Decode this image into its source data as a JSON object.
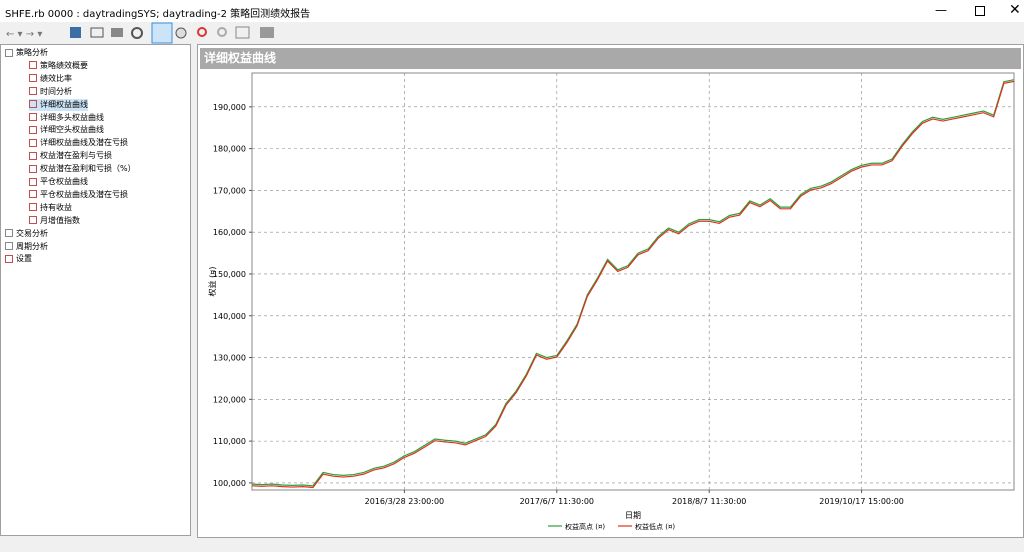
{
  "window": {
    "title": "SHFE.rb 0000 : daytradingSYS; daytrading-2 策略回测绩效报告"
  },
  "tree": {
    "items": [
      {
        "label": "策略分析",
        "children": [
          "策略绩效概要",
          "绩效比率",
          "时间分析",
          "详细权益曲线",
          "详细多头权益曲线",
          "详细空头权益曲线",
          "详细权益曲线及潜在亏损",
          "权益潜在盈利与亏损",
          "权益潜在盈利和亏损（%）",
          "平仓权益曲线",
          "平仓权益曲线及潜在亏损",
          "持有收益",
          "月增值指数"
        ]
      },
      {
        "label": "交易分析"
      },
      {
        "label": "周期分析"
      },
      {
        "label": "设置"
      }
    ]
  },
  "panel": {
    "title": "详细权益曲线"
  },
  "chart_data": {
    "type": "line",
    "xlabel": "日期",
    "ylabel": "权益 (¤)",
    "grid": true,
    "ylim": [
      98300,
      198100
    ],
    "yticks": [
      {
        "value": 100000,
        "label": "100,000"
      },
      {
        "value": 110000,
        "label": "110,000"
      },
      {
        "value": 120000,
        "label": "120,000"
      },
      {
        "value": 130000,
        "label": "130,000"
      },
      {
        "value": 140000,
        "label": "140,000"
      },
      {
        "value": 150000,
        "label": "150,000"
      },
      {
        "value": 160000,
        "label": "160,000"
      },
      {
        "value": 170000,
        "label": "170,000"
      },
      {
        "value": 180000,
        "label": "180,000"
      },
      {
        "value": 190000,
        "label": "190,000"
      }
    ],
    "categories": [
      null,
      null,
      null,
      null,
      null,
      null,
      null,
      null,
      null,
      null,
      null,
      null,
      null,
      null,
      null,
      "2016/3/28 23:00:00",
      null,
      null,
      null,
      null,
      null,
      null,
      null,
      null,
      null,
      null,
      null,
      null,
      null,
      null,
      "2017/6/7 11:30:00",
      null,
      null,
      null,
      null,
      null,
      null,
      null,
      null,
      null,
      null,
      null,
      null,
      null,
      null,
      "2018/8/7 11:30:00",
      null,
      null,
      null,
      null,
      null,
      null,
      null,
      null,
      null,
      null,
      null,
      null,
      null,
      null,
      "2019/10/17 15:00:00",
      null,
      null,
      null,
      null,
      null,
      null,
      null,
      null,
      null,
      null,
      null,
      null,
      null,
      null,
      null
    ],
    "series": [
      {
        "name": "权益高点 (¤)",
        "color": "#2e9e3a",
        "values": [
          99700,
          99600,
          99700,
          99500,
          99400,
          99500,
          99300,
          102500,
          102000,
          101800,
          102000,
          102500,
          103500,
          104000,
          105000,
          106500,
          107500,
          109000,
          110500,
          110200,
          110000,
          109500,
          110500,
          111500,
          114000,
          119000,
          122000,
          126000,
          131000,
          130000,
          130500,
          134000,
          138000,
          145000,
          149000,
          153500,
          151000,
          152000,
          155000,
          156000,
          159000,
          161000,
          160000,
          162000,
          163000,
          163000,
          162500,
          164000,
          164500,
          167500,
          166500,
          168000,
          166000,
          166000,
          169000,
          170500,
          171000,
          172000,
          173500,
          175000,
          176000,
          176500,
          176500,
          177500,
          181000,
          184000,
          186500,
          187500,
          187000,
          187500,
          188000,
          188500,
          189000,
          188000,
          196000,
          196500
        ]
      },
      {
        "name": "权益低点 (¤)",
        "color": "#e0301e",
        "values": [
          99300,
          99200,
          99300,
          99100,
          99000,
          99100,
          98900,
          102100,
          101600,
          101400,
          101600,
          102100,
          103100,
          103600,
          104600,
          106100,
          107100,
          108600,
          110100,
          109800,
          109600,
          109100,
          110100,
          111100,
          113600,
          118600,
          121600,
          125600,
          130600,
          129600,
          130100,
          133600,
          137600,
          144600,
          148600,
          153100,
          150600,
          151600,
          154600,
          155600,
          158600,
          160600,
          159600,
          161600,
          162600,
          162600,
          162100,
          163600,
          164100,
          167100,
          166100,
          167600,
          165600,
          165600,
          168600,
          170100,
          170600,
          171600,
          173100,
          174600,
          175600,
          176100,
          176100,
          177100,
          180600,
          183600,
          186100,
          187100,
          186600,
          187100,
          187600,
          188100,
          188600,
          187600,
          195600,
          196100
        ]
      }
    ]
  }
}
